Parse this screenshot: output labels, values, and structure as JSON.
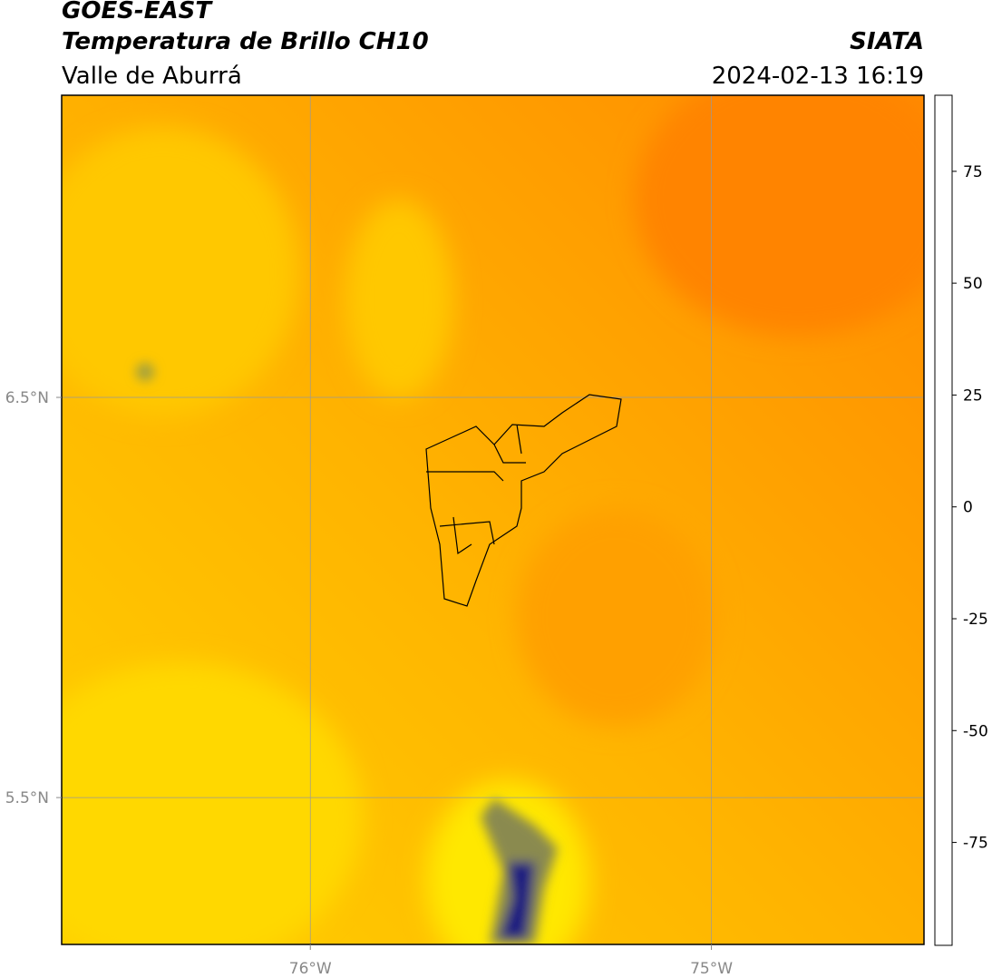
{
  "header": {
    "title": "GOES-EAST",
    "subtitle": "Temperatura de Brillo CH10",
    "region": "Valle de Aburrá",
    "source": "SIATA",
    "datetime": "2024-02-13 16:19"
  },
  "map": {
    "lonlim": [
      -76.62,
      -74.47
    ],
    "latlim": [
      5.133,
      7.255
    ],
    "lonticks": [
      {
        "value": -76,
        "label": "76°W"
      },
      {
        "value": -75,
        "label": "75°W"
      }
    ],
    "latticks": [
      {
        "value": 6.5,
        "label": "6.5°N"
      },
      {
        "value": 5.5,
        "label": "5.5°N"
      }
    ],
    "grid": true
  },
  "colorbar": {
    "lim": [
      -98,
      92
    ],
    "ticks": [
      75,
      50,
      25,
      0,
      -25,
      -50,
      -75
    ],
    "stops": [
      {
        "value": -98,
        "color": "#ffffff"
      },
      {
        "value": -93,
        "color": "#ffffff"
      },
      {
        "value": -93,
        "color": "#00f0e0"
      },
      {
        "value": -75,
        "color": "#2a9a6a"
      },
      {
        "value": -62,
        "color": "#3a8a20"
      },
      {
        "value": -52,
        "color": "#ffffff"
      },
      {
        "value": -44,
        "color": "#9aa0d0"
      },
      {
        "value": -30,
        "color": "#0a0a80"
      },
      {
        "value": -22,
        "color": "#707040"
      },
      {
        "value": -13,
        "color": "#ffff00"
      },
      {
        "value": -6,
        "color": "#ffc000"
      },
      {
        "value": 3,
        "color": "#ff7000"
      },
      {
        "value": 8,
        "color": "#ff0000"
      },
      {
        "value": 8,
        "color": "#000000"
      },
      {
        "value": 92,
        "color": "#000000"
      }
    ]
  }
}
